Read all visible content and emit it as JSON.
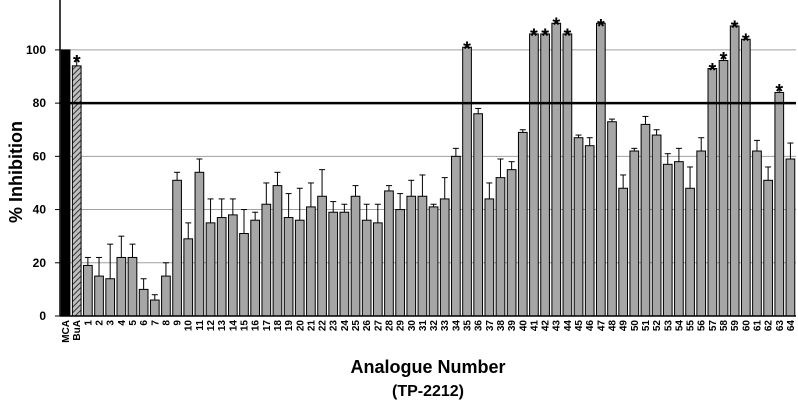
{
  "chart_data": {
    "type": "bar",
    "y_label": "% Inhibition",
    "x_label": "Analogue Number",
    "x_sublabel": "(TP-2212)",
    "categories": [
      "MCA",
      "BuA",
      "1",
      "2",
      "3",
      "4",
      "5",
      "6",
      "7",
      "8",
      "9",
      "10",
      "11",
      "12",
      "13",
      "14",
      "15",
      "16",
      "17",
      "18",
      "19",
      "20",
      "21",
      "22",
      "23",
      "24",
      "25",
      "26",
      "27",
      "28",
      "29",
      "30",
      "31",
      "32",
      "33",
      "34",
      "35",
      "36",
      "37",
      "38",
      "39",
      "40",
      "41",
      "42",
      "43",
      "44",
      "45",
      "46",
      "47",
      "48",
      "49",
      "50",
      "51",
      "52",
      "53",
      "54",
      "55",
      "56",
      "57",
      "58",
      "59",
      "60",
      "61",
      "62",
      "63",
      "64"
    ],
    "series": [
      {
        "color": "#a6a6a6",
        "values": [
          100,
          94,
          19,
          15,
          14,
          22,
          22,
          10,
          6,
          15,
          51,
          29,
          54,
          35,
          37,
          38,
          31,
          36,
          42,
          49,
          37,
          36,
          41,
          45,
          39,
          39,
          45,
          36,
          35,
          47,
          40,
          45,
          45,
          41,
          44,
          60,
          101,
          76,
          44,
          52,
          55,
          69,
          106,
          106,
          110,
          106,
          67,
          64,
          110,
          73,
          48,
          62,
          72,
          68,
          57,
          58,
          48,
          62,
          93,
          96,
          109,
          104,
          62,
          51,
          84,
          59
        ],
        "errors": [
          0,
          3,
          3,
          7,
          13,
          8,
          5,
          4,
          2,
          5,
          3,
          6,
          5,
          9,
          7,
          6,
          9,
          3,
          8,
          5,
          9,
          12,
          9,
          10,
          4,
          3,
          4,
          6,
          7,
          2,
          6,
          6,
          8,
          1,
          8,
          3,
          1,
          2,
          6,
          7,
          3,
          1,
          1,
          1,
          1,
          1,
          1,
          3,
          0.5,
          1,
          5,
          1,
          3,
          2,
          4,
          5,
          8,
          5,
          1,
          2,
          1,
          1,
          4,
          5,
          2,
          6
        ]
      }
    ],
    "markers": [
      null,
      "*",
      null,
      null,
      null,
      null,
      null,
      null,
      null,
      null,
      null,
      null,
      null,
      null,
      null,
      null,
      null,
      null,
      null,
      null,
      null,
      null,
      null,
      null,
      null,
      null,
      null,
      null,
      null,
      null,
      null,
      null,
      null,
      null,
      null,
      null,
      "*",
      null,
      null,
      null,
      null,
      null,
      "*",
      "*",
      "*",
      "*",
      null,
      null,
      "*",
      null,
      null,
      null,
      null,
      null,
      null,
      null,
      null,
      null,
      "*",
      "*",
      "*",
      "*",
      null,
      null,
      "*",
      null
    ],
    "special_colors": {
      "MCA": "#000000",
      "BuA": "hatched"
    },
    "reference_line": 80,
    "ylim": [
      0,
      118
    ],
    "yticks": [
      0,
      20,
      40,
      60,
      80,
      100
    ],
    "grid": true
  }
}
